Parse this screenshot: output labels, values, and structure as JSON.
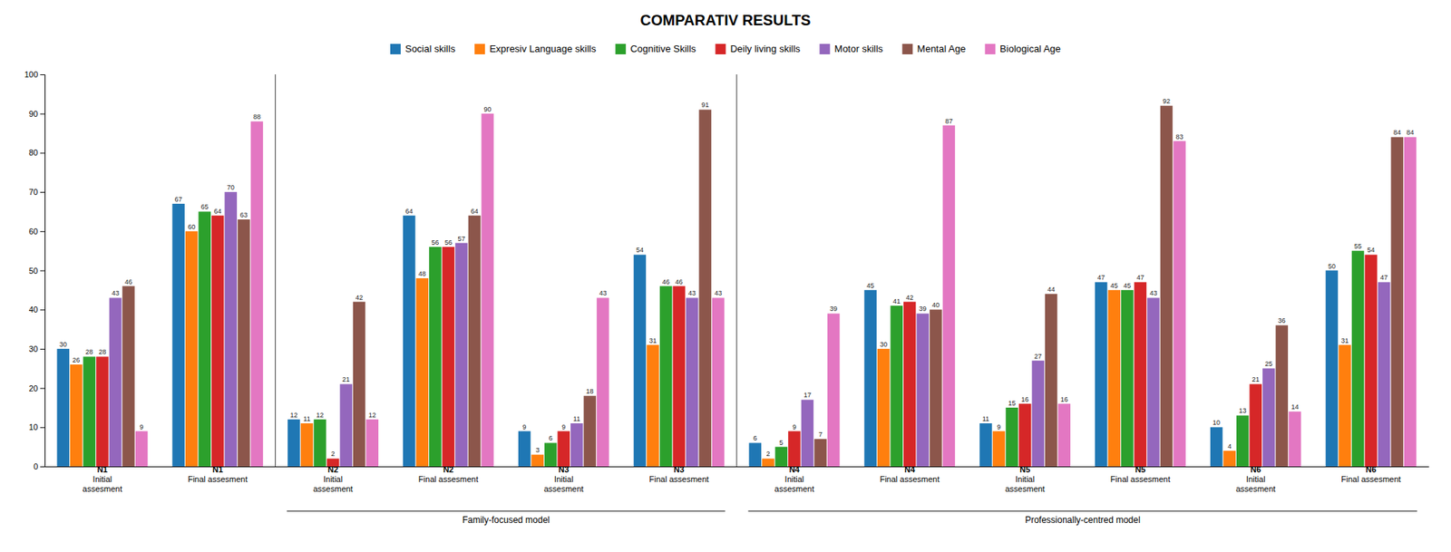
{
  "chart_data": {
    "type": "bar",
    "title": "COMPARATIV RESULTS",
    "categories": [
      "N1\nInitial\nassesment",
      "N1\nFinal assesment",
      "N2\nInitial\nassesment",
      "N2\nFinal assesment",
      "N3\nInitial\nassesment",
      "N3\nFinal assesment",
      "N4\nInitial\nassesment",
      "N4\nFinal assesment",
      "N5\nInitial\nassesment",
      "N5\nFinal assesment",
      "N6\nInitial\nassesment",
      "N6\nFinal assesment"
    ],
    "series": [
      {
        "name": "Social skills",
        "values": [
          30,
          67,
          12,
          64,
          9,
          54,
          6,
          45,
          11,
          47,
          10,
          50
        ]
      },
      {
        "name": "Expresiv Language skills",
        "values": [
          26,
          60,
          11,
          48,
          3,
          31,
          2,
          30,
          9,
          45,
          4,
          31
        ]
      },
      {
        "name": "Cognitive Skills",
        "values": [
          28,
          65,
          12,
          56,
          6,
          46,
          5,
          41,
          15,
          45,
          13,
          55
        ]
      },
      {
        "name": "Deily living skills",
        "values": [
          28,
          64,
          2,
          56,
          9,
          46,
          9,
          42,
          16,
          47,
          21,
          54
        ]
      },
      {
        "name": "Motor skills",
        "values": [
          43,
          70,
          21,
          57,
          11,
          43,
          17,
          39,
          27,
          43,
          25,
          47
        ]
      },
      {
        "name": "Mental Age",
        "values": [
          46,
          63,
          42,
          64,
          18,
          91,
          7,
          40,
          44,
          92,
          36,
          84
        ]
      },
      {
        "name": "Biological Age",
        "values": [
          9,
          88,
          12,
          90,
          43,
          43,
          39,
          87,
          16,
          83,
          14,
          84
        ]
      }
    ],
    "annotations": [
      {
        "text": "Family-focused model",
        "from": 2,
        "to": 5
      },
      {
        "text": "Professionally-centred model",
        "from": 6,
        "to": 11
      }
    ],
    "ylim": [
      0,
      100
    ],
    "yticks": [
      0,
      10,
      20,
      30,
      40,
      50,
      60,
      70,
      80,
      90,
      100
    ],
    "grid": false,
    "legend": "top",
    "data_labels": true
  }
}
